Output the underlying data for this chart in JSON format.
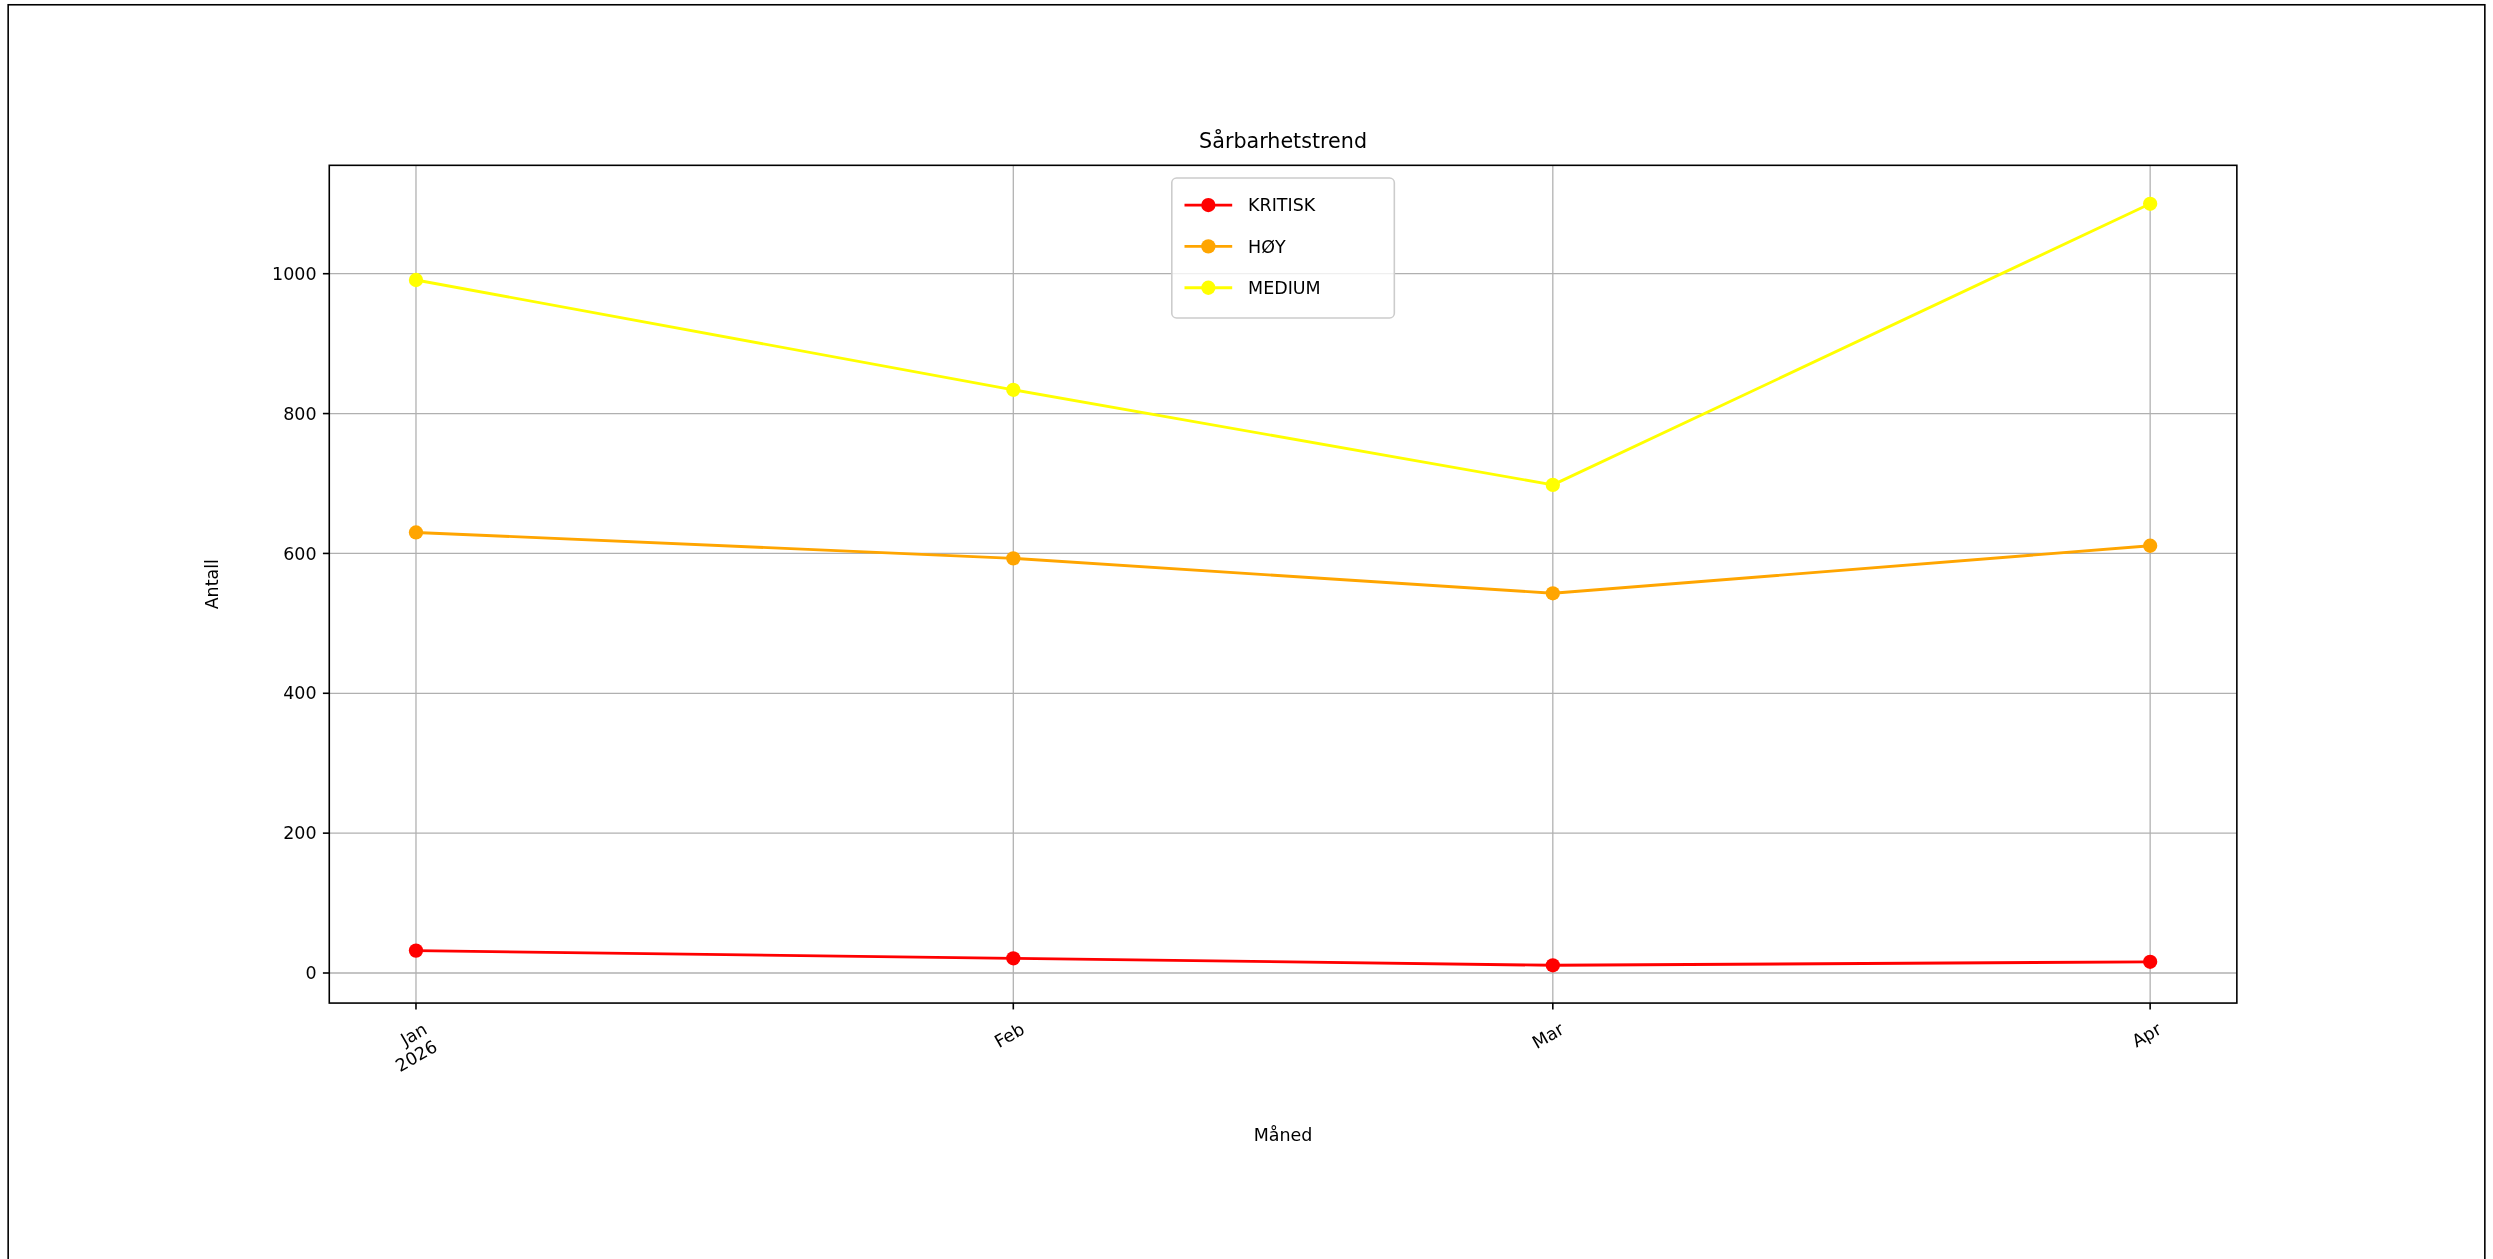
{
  "chart_data": {
    "type": "line",
    "title": "Sårbarhetstrend",
    "xlabel": "Måned",
    "ylabel": "Antall",
    "x": [
      "2026-01",
      "2026-02",
      "2026-03",
      "2026-04"
    ],
    "series": [
      {
        "name": "KRITISK",
        "color": "#ff0000",
        "values": [
          32,
          21,
          11,
          16
        ]
      },
      {
        "name": "HØY",
        "color": "#ffa500",
        "values": [
          630,
          593,
          543,
          611
        ]
      },
      {
        "name": "MEDIUM",
        "color": "#ffff00",
        "values": [
          991,
          834,
          698,
          1100
        ]
      }
    ],
    "xlim": [
      "2025-12-27T12:00",
      "2026-04-05T12:00"
    ],
    "xticks": [
      {
        "value": "2026-01",
        "label": "Jan\n2026"
      },
      {
        "value": "2026-02",
        "label": "Feb"
      },
      {
        "value": "2026-03",
        "label": "Mar"
      },
      {
        "value": "2026-04",
        "label": "Apr"
      }
    ],
    "ylim": [
      -43,
      1155
    ],
    "yticks": [
      0,
      200,
      400,
      600,
      800,
      1000
    ],
    "grid": true,
    "legend": "top",
    "marker": "circle",
    "line_style": "solid"
  }
}
